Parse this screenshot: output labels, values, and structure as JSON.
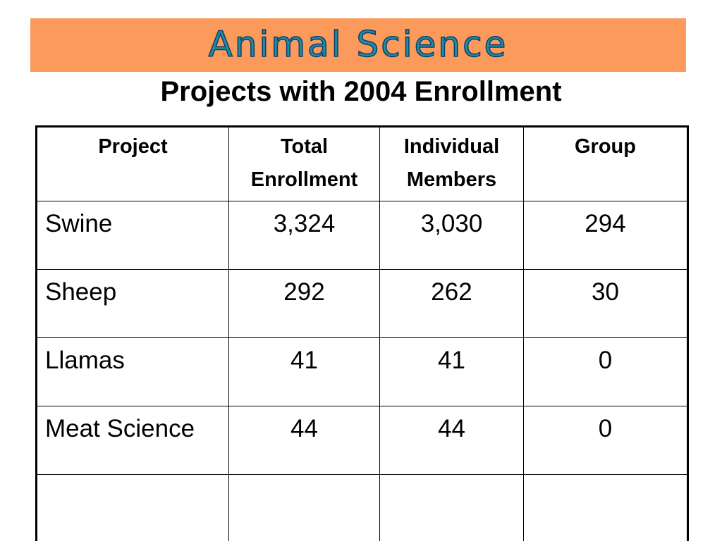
{
  "banner": {
    "title": "Animal Science",
    "background_color": "#fb9a5a",
    "text_color": "#1f8fa0"
  },
  "subtitle": "Projects with 2004 Enrollment",
  "table": {
    "headers": [
      {
        "line1": "Project",
        "line2": ""
      },
      {
        "line1": "Total",
        "line2": "Enrollment"
      },
      {
        "line1": "Individual",
        "line2": "Members"
      },
      {
        "line1": "Group",
        "line2": ""
      }
    ],
    "rows": [
      {
        "project": "Swine",
        "total": "3,324",
        "individual": "3,030",
        "group": "294"
      },
      {
        "project": "Sheep",
        "total": "292",
        "individual": "262",
        "group": "30"
      },
      {
        "project": "Llamas",
        "total": "41",
        "individual": "41",
        "group": "0"
      },
      {
        "project": "Meat Science",
        "total": "44",
        "individual": "44",
        "group": "0"
      },
      {
        "project": "",
        "total": "",
        "individual": "",
        "group": ""
      }
    ]
  }
}
